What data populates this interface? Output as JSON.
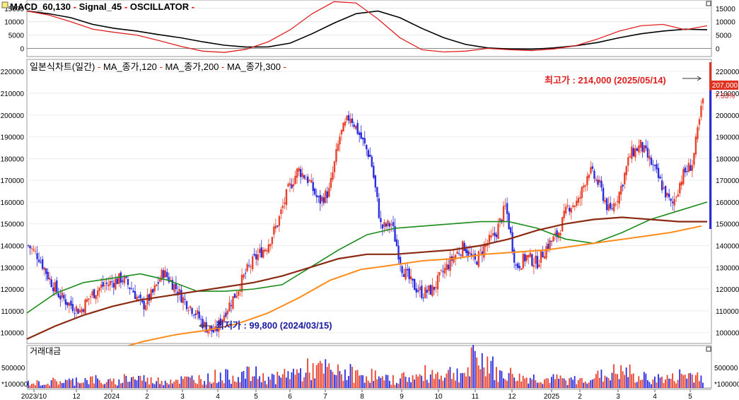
{
  "macd_panel": {
    "title_parts": [
      {
        "text": "MACD_60,130",
        "color": "#000000"
      },
      {
        "text": " - ",
        "color": "#ff0000"
      },
      {
        "text": "Signal_45",
        "color": "#000000"
      },
      {
        "text": " - ",
        "color": "#ff0000"
      },
      {
        "text": "OSCILLATOR",
        "color": "#000000"
      },
      {
        "text": " -",
        "color": "#ff0000"
      }
    ],
    "left_ticks": [
      "15000",
      "10000",
      "5000",
      "0"
    ],
    "right_ticks": [
      "15000",
      "10000",
      "5000",
      "0"
    ]
  },
  "price_panel": {
    "title_parts": [
      {
        "text": "일본식차트(일간)",
        "color": "#000000"
      },
      {
        "text": " - ",
        "color": "#ff0000"
      },
      {
        "text": "MA_종가,120",
        "color": "#000000"
      },
      {
        "text": " - ",
        "color": "#ff0000"
      },
      {
        "text": "MA_종가,200",
        "color": "#000000"
      },
      {
        "text": " - ",
        "color": "#ff0000"
      },
      {
        "text": "MA_종가,300",
        "color": "#000000"
      },
      {
        "text": " -",
        "color": "#ff0000"
      }
    ],
    "high_label": "최고가 : 214,000 (2025/05/14)",
    "low_label": "최저가 : 99,800 (2024/03/15)",
    "last_price_tag": "207,000",
    "change_tag": "7.53%"
  },
  "volume_panel": {
    "title": "거래대금",
    "ticks": [
      "500000",
      "*100000"
    ]
  },
  "x_axis_labels": [
    "2023/10",
    "12",
    "2024",
    "2",
    "3",
    "4",
    "5",
    "6",
    "7",
    "8",
    "9",
    "10",
    "11",
    "12",
    "2025",
    "2",
    "3",
    "4",
    "5"
  ],
  "colors": {
    "up_candle": "#e8412c",
    "down_candle": "#2b2be0",
    "ma120": "#1a8c1a",
    "ma200": "#8b2a12",
    "ma300": "#ff8c1a",
    "macd": "#000000",
    "signal": "#e02020",
    "high_text": "#e02020",
    "low_text": "#1a1aa0"
  },
  "chart_data": [
    {
      "type": "line",
      "title": "MACD_60,130 - Signal_45 - OSCILLATOR",
      "ylim": [
        -2500,
        16000
      ],
      "x_labels": [
        "2023/10",
        "12",
        "2024",
        "2",
        "3",
        "4",
        "5",
        "6",
        "7",
        "8",
        "9",
        "10",
        "11",
        "12",
        "2025",
        "2",
        "3",
        "4",
        "5"
      ],
      "series": [
        {
          "name": "MACD_60,130",
          "values": [
            14000,
            13000,
            11500,
            9000,
            7500,
            6500,
            5200,
            4000,
            2500,
            1200,
            500,
            600,
            2000,
            5500,
            9500,
            13000,
            14000,
            11500,
            7500,
            4000,
            1500,
            200,
            -200,
            -300,
            200,
            1000,
            2200,
            4000,
            5500,
            6500,
            7200,
            7000
          ]
        },
        {
          "name": "Signal_45",
          "values": [
            14000,
            12500,
            10000,
            7200,
            6000,
            5000,
            3000,
            800,
            -1000,
            -1500,
            -300,
            2500,
            7000,
            13000,
            17500,
            17000,
            11000,
            4000,
            -500,
            -1300,
            -1000,
            0,
            -500,
            -800,
            -200,
            1000,
            3500,
            6500,
            8500,
            9000,
            7000,
            8500
          ]
        }
      ]
    },
    {
      "type": "candlestick",
      "title": "일본식차트(일간) - MA_종가,120 - MA_종가,200 - MA_종가,300",
      "ylim": [
        95000,
        223000
      ],
      "y_ticks": [
        100000,
        110000,
        120000,
        130000,
        140000,
        150000,
        160000,
        170000,
        180000,
        190000,
        200000,
        210000,
        220000
      ],
      "x_labels": [
        "2023/10",
        "12",
        "2024",
        "2",
        "3",
        "4",
        "5",
        "6",
        "7",
        "8",
        "9",
        "10",
        "11",
        "12",
        "2025",
        "2",
        "3",
        "4",
        "5"
      ],
      "close": [
        140000,
        135000,
        125000,
        117000,
        113000,
        110000,
        117000,
        121000,
        123000,
        125000,
        120000,
        112000,
        118000,
        128000,
        122000,
        115000,
        110000,
        103000,
        100000,
        110000,
        118000,
        128000,
        135000,
        140000,
        150000,
        165000,
        175000,
        170000,
        160000,
        165000,
        190000,
        200000,
        190000,
        180000,
        148000,
        150000,
        130000,
        122000,
        118000,
        120000,
        128000,
        135000,
        140000,
        132000,
        140000,
        145000,
        158000,
        130000,
        135000,
        132000,
        140000,
        145000,
        158000,
        160000,
        175000,
        168000,
        155000,
        165000,
        182000,
        186000,
        178000,
        168000,
        158000,
        172000,
        178000,
        207000
      ],
      "annotations": {
        "high": 214000,
        "high_date": "2025/05/14",
        "low": 99800,
        "low_date": "2024/03/15",
        "last": 207000,
        "change_pct": 7.53
      },
      "series": [
        {
          "name": "MA_종가,120",
          "values": [
            109000,
            118000,
            123000,
            125000,
            127000,
            124000,
            119000,
            119000,
            120000,
            122000,
            130000,
            138000,
            145000,
            148000,
            149000,
            150000,
            151000,
            151000,
            148000,
            143000,
            141000,
            146000,
            152000,
            156000,
            160000
          ]
        },
        {
          "name": "MA_종가,200",
          "values": [
            97000,
            103000,
            108000,
            112000,
            115000,
            117000,
            119000,
            121000,
            123000,
            126000,
            130000,
            134000,
            136000,
            136000,
            137000,
            138000,
            140000,
            143000,
            147000,
            150000,
            152000,
            153000,
            152000,
            151000,
            151000
          ]
        },
        {
          "name": "MA_종가,300",
          "values": [
            92000,
            96000,
            99000,
            101000,
            104000,
            109000,
            116000,
            124000,
            129000,
            131000,
            133000,
            134000,
            136000,
            137000,
            138000,
            140000,
            142000,
            144000,
            146000,
            149000
          ]
        }
      ]
    },
    {
      "type": "bar",
      "title": "거래대금",
      "ylim": [
        0,
        850000
      ],
      "x_labels": [
        "2023/10",
        "12",
        "2024",
        "2",
        "3",
        "4",
        "5",
        "6",
        "7",
        "8",
        "9",
        "10",
        "11",
        "12",
        "2025",
        "2",
        "3",
        "4",
        "5"
      ],
      "values": [
        150000,
        200000,
        250000,
        180000,
        300000,
        220000,
        250000,
        280000,
        350000,
        400000,
        300000,
        450000,
        550000,
        450000,
        380000,
        250000,
        320000,
        420000,
        450000,
        800000,
        400000,
        300000,
        260000,
        230000,
        350000,
        450000,
        300000,
        280000,
        380000,
        420000
      ]
    }
  ]
}
